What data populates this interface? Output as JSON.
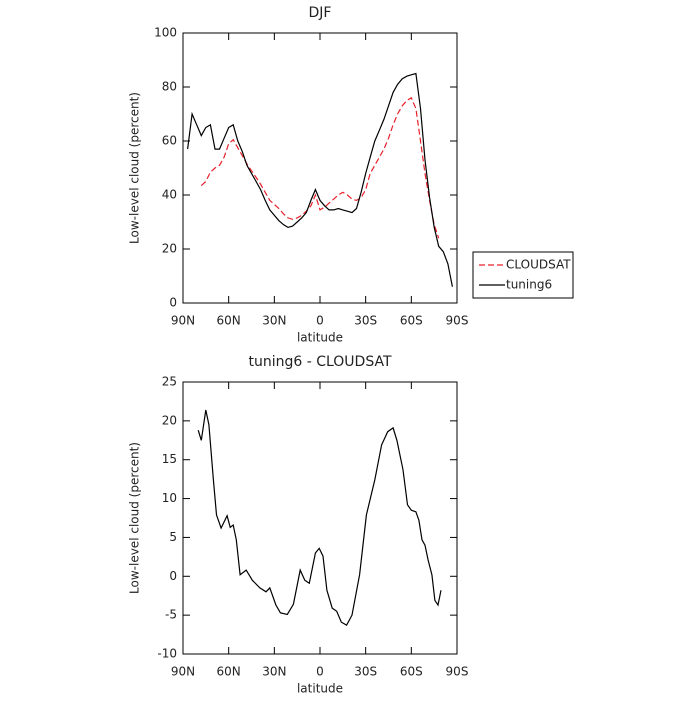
{
  "chart_data": [
    {
      "type": "line",
      "title": "DJF",
      "x_label": "latitude",
      "y_label": "Low-level cloud (percent)",
      "x": [
        87,
        84,
        81,
        78,
        75,
        72,
        69,
        66,
        63,
        60,
        57,
        54,
        51,
        48,
        45,
        42,
        39,
        36,
        33,
        30,
        27,
        24,
        21,
        18,
        15,
        12,
        9,
        6,
        3,
        0,
        -3,
        -6,
        -9,
        -12,
        -15,
        -18,
        -21,
        -24,
        -27,
        -30,
        -33,
        -36,
        -39,
        -42,
        -45,
        -48,
        -51,
        -54,
        -57,
        -60,
        -63,
        -66,
        -69,
        -72,
        -75,
        -78,
        -81,
        -84,
        -87
      ],
      "series": [
        {
          "name": "CLOUDSAT",
          "color": "#e8202a",
          "line_style": "dashed",
          "values": [
            null,
            null,
            null,
            43.5,
            45,
            48.5,
            50,
            51,
            54,
            59,
            60.5,
            57.5,
            54.5,
            51.5,
            49,
            46.5,
            44,
            41,
            38,
            36.5,
            35,
            33,
            31.5,
            31,
            31.5,
            32.5,
            34,
            36,
            40,
            34.5,
            35.5,
            37,
            38.5,
            40,
            41,
            40,
            38.5,
            38,
            39,
            42,
            48,
            51,
            54,
            57,
            61,
            66,
            70,
            73,
            75,
            76,
            72,
            60,
            48,
            38,
            29,
            24,
            null,
            null,
            null
          ]
        },
        {
          "name": "tuning6",
          "color": "#000000",
          "line_style": "solid",
          "values": [
            57,
            70,
            66,
            62,
            65,
            66,
            57,
            57,
            61,
            65,
            66,
            60,
            56,
            51,
            48,
            45,
            42,
            38,
            34.5,
            32.5,
            30.5,
            29,
            28,
            28.5,
            30,
            31.5,
            33.5,
            38,
            42,
            38,
            36,
            34.5,
            34.5,
            35,
            34.5,
            34,
            33.5,
            35,
            41,
            48,
            54,
            60,
            64,
            68,
            73,
            78,
            81,
            83,
            84,
            84.5,
            85,
            72,
            53,
            39,
            28,
            21,
            19,
            14.5,
            6
          ]
        }
      ],
      "xlim": [
        90,
        -90
      ],
      "xticks": [
        {
          "value": 90,
          "label": "90N"
        },
        {
          "value": 60,
          "label": "60N"
        },
        {
          "value": 30,
          "label": "30N"
        },
        0,
        {
          "value": -30,
          "label": "30S"
        },
        {
          "value": -60,
          "label": "60S"
        },
        {
          "value": -90,
          "label": "90S"
        }
      ],
      "ylim": [
        0,
        100
      ],
      "yticks": [
        0,
        20,
        40,
        60,
        80,
        100
      ],
      "legend": "right"
    },
    {
      "type": "line",
      "title": "tuning6 - CLOUDSAT",
      "x_label": "latitude",
      "y_label": "Low-level cloud (percent)",
      "x": [
        80,
        78,
        75,
        73,
        70,
        68,
        65,
        61,
        59,
        57,
        55,
        52.5,
        48.5,
        44.5,
        39.5,
        35.5,
        33,
        29,
        26,
        21.5,
        17.5,
        13,
        10,
        7,
        3,
        0.5,
        -2,
        -4.5,
        -8,
        -11,
        -14,
        -17.5,
        -21,
        -26,
        -30.5,
        -36,
        -40.5,
        -44.5,
        -48,
        -50.5,
        -54.5,
        -57.5,
        -60,
        -63,
        -65,
        -67,
        -69,
        -71,
        -73.5,
        -75.5,
        -77.5,
        -79.5
      ],
      "values": [
        18.8,
        17.5,
        21.4,
        19.5,
        12.4,
        7.9,
        6.2,
        7.8,
        6.3,
        6.6,
        4.7,
        0.2,
        0.8,
        -0.5,
        -1.5,
        -2.0,
        -1.5,
        -3.7,
        -4.7,
        -4.9,
        -3.6,
        0.8,
        -0.5,
        -0.9,
        3.0,
        3.6,
        2.6,
        -1.8,
        -4.1,
        -4.5,
        -5.9,
        -6.3,
        -5.0,
        0.2,
        7.9,
        12.4,
        16.9,
        18.6,
        19.1,
        17.5,
        13.7,
        9.2,
        8.5,
        8.3,
        7.2,
        4.7,
        4.0,
        2.1,
        0.2,
        -3.1,
        -3.7,
        -1.8
      ],
      "color": "#000000",
      "xlim": [
        90,
        -90
      ],
      "xticks": [
        {
          "value": 90,
          "label": "90N"
        },
        {
          "value": 60,
          "label": "60N"
        },
        {
          "value": 30,
          "label": "30N"
        },
        0,
        {
          "value": -30,
          "label": "30S"
        },
        {
          "value": -60,
          "label": "60S"
        },
        {
          "value": -90,
          "label": "90S"
        }
      ],
      "ylim": [
        -10,
        25
      ],
      "yticks": [
        -10,
        -5,
        0,
        5,
        10,
        15,
        20,
        25
      ]
    }
  ]
}
